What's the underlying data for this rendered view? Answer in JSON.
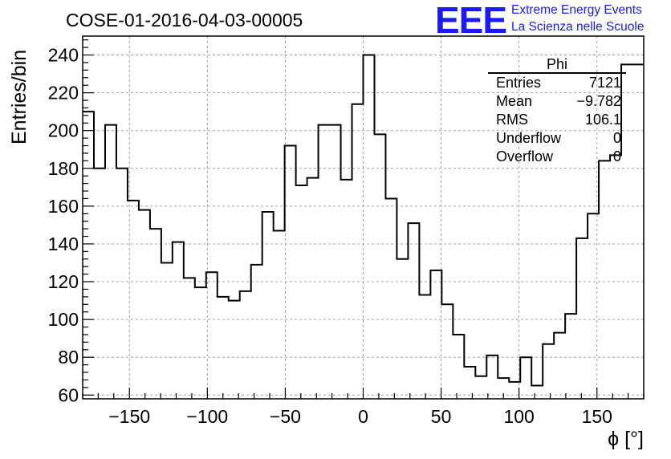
{
  "page": {
    "title": "COSE-01-2016-04-03-00005",
    "logo_text": "EEE",
    "logo_line1": "Extreme Energy Events",
    "logo_line2": "La Scienza nelle Scuole"
  },
  "stats_box": {
    "name": "Phi",
    "rows": [
      {
        "label": "Entries",
        "value": "7121"
      },
      {
        "label": "Mean",
        "value": "−9.782"
      },
      {
        "label": "RMS",
        "value": "106.1"
      },
      {
        "label": "Underflow",
        "value": "0"
      },
      {
        "label": "Overflow",
        "value": "0"
      }
    ]
  },
  "chart_data": {
    "type": "histogram",
    "title": "COSE-01-2016-04-03-00005",
    "xlabel": "ϕ [°]",
    "ylabel": "Entries/bin",
    "xlim": [
      -180,
      180
    ],
    "ylim": [
      58,
      250
    ],
    "bin_width": 7.2,
    "x_ticks": [
      -150,
      -100,
      -50,
      0,
      50,
      100,
      150
    ],
    "x_tick_labels": [
      "−150",
      "−100",
      "−50",
      "0",
      "50",
      "100",
      "150"
    ],
    "y_ticks": [
      60,
      80,
      100,
      120,
      140,
      160,
      180,
      200,
      220,
      240
    ],
    "y_tick_labels": [
      "60",
      "80",
      "100",
      "120",
      "140",
      "160",
      "180",
      "200",
      "220",
      "240"
    ],
    "grid": true,
    "line_color": "#000000",
    "values": [
      210,
      180,
      203,
      180,
      163,
      158,
      148,
      130,
      141,
      122,
      117,
      125,
      112,
      110,
      115,
      129,
      157,
      147,
      192,
      171,
      175,
      203,
      203,
      174,
      214,
      240,
      198,
      164,
      132,
      151,
      113,
      126,
      108,
      92,
      75,
      70,
      81,
      69,
      67,
      80,
      65,
      87,
      93,
      103,
      143,
      156,
      184,
      187,
      235,
      235
    ]
  }
}
